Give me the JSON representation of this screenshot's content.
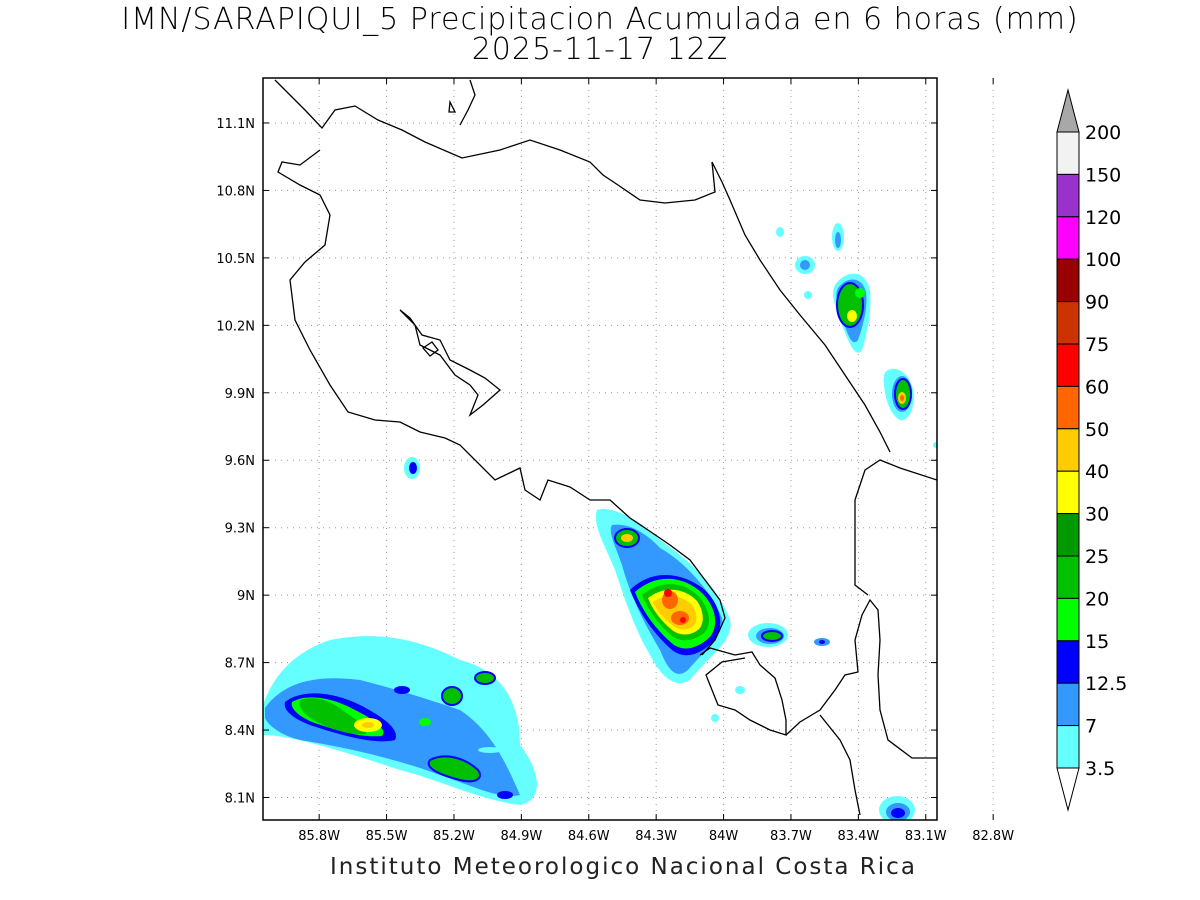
{
  "title": "IMN/SARAPIQUI_5 Precipitacion Acumulada en 6 horas (mm)",
  "subtitle": "2025-11-17 12Z",
  "credit": "Instituto Meteorologico Nacional Costa Rica",
  "map": {
    "lon_range": [
      -86.05,
      -83.05
    ],
    "lat_range": [
      8.0,
      11.3
    ],
    "lon_ticks": [
      {
        "v": -85.8,
        "label": "85.8W"
      },
      {
        "v": -85.5,
        "label": "85.5W"
      },
      {
        "v": -85.2,
        "label": "85.2W"
      },
      {
        "v": -84.9,
        "label": "84.9W"
      },
      {
        "v": -84.6,
        "label": "84.6W"
      },
      {
        "v": -84.3,
        "label": "84.3W"
      },
      {
        "v": -84.0,
        "label": "84W"
      },
      {
        "v": -83.7,
        "label": "83.7W"
      },
      {
        "v": -83.4,
        "label": "83.4W"
      },
      {
        "v": -83.1,
        "label": "83.1W"
      },
      {
        "v": -82.8,
        "label": "82.8W"
      }
    ],
    "lat_ticks": [
      {
        "v": 11.1,
        "label": "11.1N"
      },
      {
        "v": 10.8,
        "label": "10.8N"
      },
      {
        "v": 10.5,
        "label": "10.5N"
      },
      {
        "v": 10.2,
        "label": "10.2N"
      },
      {
        "v": 9.9,
        "label": "9.9N"
      },
      {
        "v": 9.6,
        "label": "9.6N"
      },
      {
        "v": 9.3,
        "label": "9.3N"
      },
      {
        "v": 9.0,
        "label": "9N"
      },
      {
        "v": 8.7,
        "label": "8.7N"
      },
      {
        "v": 8.4,
        "label": "8.4N"
      },
      {
        "v": 8.1,
        "label": "8.1N"
      }
    ],
    "grid": true
  },
  "legend": {
    "levels": [
      {
        "label": "200",
        "color": "#f2f2f2"
      },
      {
        "label": "150",
        "color": "#9932cc"
      },
      {
        "label": "120",
        "color": "#ff00ff"
      },
      {
        "label": "100",
        "color": "#990000"
      },
      {
        "label": "90",
        "color": "#cc3300"
      },
      {
        "label": "75",
        "color": "#ff0000"
      },
      {
        "label": "60",
        "color": "#ff6600"
      },
      {
        "label": "50",
        "color": "#ffcc00"
      },
      {
        "label": "40",
        "color": "#ffff00"
      },
      {
        "label": "30",
        "color": "#009900"
      },
      {
        "label": "25",
        "color": "#00c000"
      },
      {
        "label": "20",
        "color": "#00ff00"
      },
      {
        "label": "15",
        "color": "#0000ff"
      },
      {
        "label": "12.5",
        "color": "#3399ff"
      },
      {
        "label": "7",
        "color": "#66ffff"
      },
      {
        "label": "3.5",
        "color": "#ffffff"
      }
    ],
    "top_arrow_color": "#a8a8a8",
    "bottom_arrow_color": "#ffffff"
  }
}
